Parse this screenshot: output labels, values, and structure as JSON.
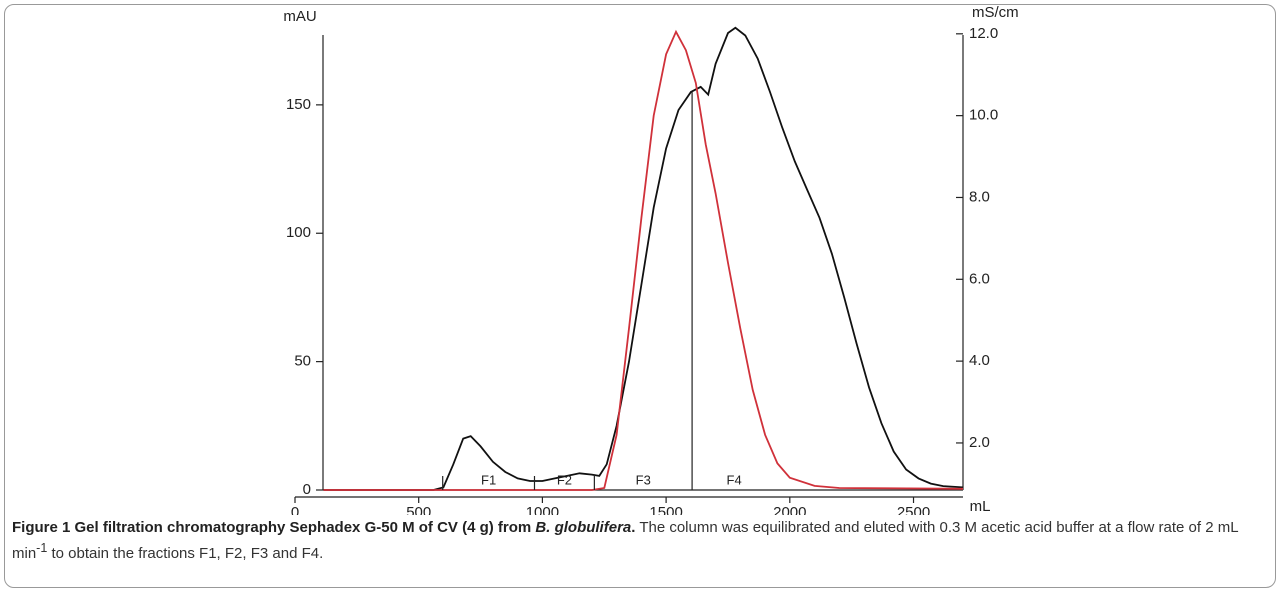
{
  "chart_data": {
    "type": "line",
    "xlabel": "mL",
    "ylabel": "mAU",
    "y2label": "mS/cm",
    "xlim": [
      0,
      2700
    ],
    "xticks": [
      0,
      500,
      1000,
      1500,
      2000,
      2500
    ],
    "ylim": [
      0,
      185
    ],
    "yticks": [
      0,
      50,
      100,
      150
    ],
    "y2lim": [
      0.85,
      12.46
    ],
    "y2ticks": [
      {
        "value": 2,
        "label": "2.0"
      },
      {
        "value": 4,
        "label": "4.0"
      },
      {
        "value": 6,
        "label": "6.0"
      },
      {
        "value": 8,
        "label": "8.0"
      },
      {
        "value": 10,
        "label": "10.0"
      },
      {
        "value": 12,
        "label": "12.0"
      }
    ],
    "fraction_bounds": [
      597,
      968,
      1210,
      1605
    ],
    "fraction_labels": [
      "F1",
      "F2",
      "F3",
      "F4"
    ],
    "series": [
      {
        "name": "mAU",
        "color": "#111111",
        "x": [
          115,
          560,
          600,
          640,
          680,
          710,
          750,
          800,
          850,
          900,
          950,
          1000,
          1050,
          1100,
          1150,
          1200,
          1230,
          1260,
          1300,
          1350,
          1400,
          1450,
          1500,
          1550,
          1600,
          1640,
          1670,
          1700,
          1750,
          1780,
          1820,
          1870,
          1920,
          1970,
          2020,
          2070,
          2120,
          2170,
          2220,
          2270,
          2320,
          2370,
          2420,
          2470,
          2520,
          2570,
          2620,
          2700
        ],
        "values": [
          0,
          0,
          1,
          10,
          20,
          21,
          17,
          11,
          7,
          4.5,
          3.5,
          3.5,
          4.5,
          5.5,
          6.5,
          6,
          5.5,
          10,
          25,
          50,
          80,
          110,
          133,
          148,
          155,
          157,
          154,
          166,
          178,
          180,
          177,
          168,
          155,
          141,
          128,
          117,
          106,
          92,
          75,
          57,
          40,
          26,
          15,
          8,
          4.5,
          2.5,
          1.5,
          1
        ]
      },
      {
        "name": "mS/cm",
        "color": "#d0313a",
        "axis": "y2",
        "x": [
          115,
          1200,
          1250,
          1300,
          1350,
          1400,
          1450,
          1500,
          1540,
          1580,
          1620,
          1660,
          1700,
          1750,
          1800,
          1850,
          1900,
          1950,
          2000,
          2100,
          2200,
          2700
        ],
        "values": [
          0.85,
          0.85,
          0.9,
          2.2,
          4.8,
          7.5,
          10,
          11.5,
          12.05,
          11.6,
          10.8,
          9.3,
          8.1,
          6.4,
          4.8,
          3.3,
          2.2,
          1.5,
          1.15,
          0.95,
          0.9,
          0.88
        ]
      }
    ]
  },
  "caption": {
    "bold": "Figure 1 Gel filtration chromatography Sephadex G-50 M of CV (4 g) from ",
    "bold_italic": "B. globulifera",
    "bold_end": ".",
    "text_1": " The column was equilibrated and eluted with 0.3 M acetic acid buffer at a flow rate of 2 mL min",
    "sup": "-1",
    "text_2": " to obtain the fractions F1, F2, F3 and F4."
  }
}
